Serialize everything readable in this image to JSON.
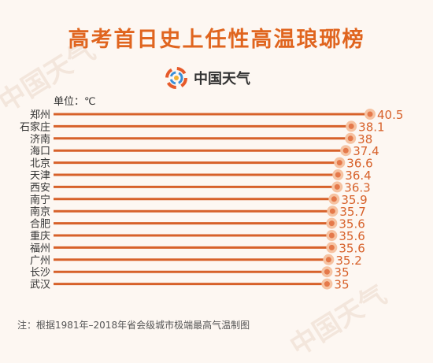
{
  "header": {
    "title": "高考首日史上任性高温琅琊榜",
    "logo_text": "中国天气",
    "unit_label": "单位：℃"
  },
  "watermark": "中国天气",
  "footnote": "注：根据1981年–2018年省会级城市极端最高气温制图",
  "colors": {
    "title": "#e0651f",
    "bar": "#d7612a",
    "dot": "#e5794a",
    "halo": "#f6c3a2",
    "value_text": "#d7612a"
  },
  "chart_data": {
    "type": "bar",
    "orientation": "horizontal",
    "title": "高考首日史上任性高温琅琊榜",
    "unit": "℃",
    "categories": [
      "郑州",
      "石家庄",
      "济南",
      "海口",
      "北京",
      "天津",
      "西安",
      "南宁",
      "南京",
      "合肥",
      "重庆",
      "福州",
      "广州",
      "长沙",
      "武汉"
    ],
    "values": [
      40.5,
      38.1,
      38,
      37.4,
      36.6,
      36.4,
      36.3,
      35.9,
      35.7,
      35.6,
      35.6,
      35.6,
      35.2,
      35,
      35
    ],
    "value_labels": [
      "40.5",
      "38.1",
      "38",
      "37.4",
      "36.6",
      "36.4",
      "36.3",
      "35.9",
      "35.7",
      "35.6",
      "35.6",
      "35.6",
      "35.2",
      "35",
      "35"
    ],
    "xlim": [
      0,
      40.5
    ],
    "grid": false,
    "legend": "none"
  }
}
